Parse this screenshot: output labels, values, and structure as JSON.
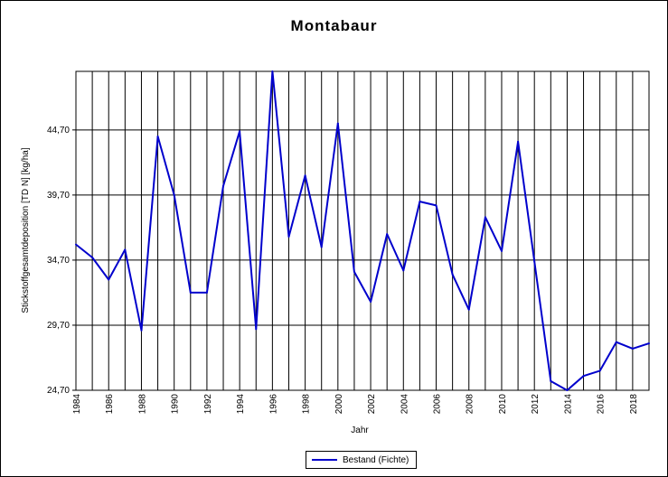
{
  "chart_data": {
    "type": "line",
    "title": "Montabaur",
    "xlabel": "Jahr",
    "ylabel": "Stickstoffgesamtdeposition [TD N] [kg/ha]",
    "x": [
      1984,
      1985,
      1986,
      1987,
      1988,
      1989,
      1990,
      1991,
      1992,
      1993,
      1994,
      1995,
      1996,
      1997,
      1998,
      1999,
      2000,
      2001,
      2002,
      2003,
      2004,
      2005,
      2006,
      2007,
      2008,
      2009,
      2010,
      2011,
      2012,
      2013,
      2014,
      2015,
      2016,
      2017,
      2018,
      2019
    ],
    "xlim": [
      1984,
      2019
    ],
    "x_ticks": [
      "1984",
      "1986",
      "1988",
      "1990",
      "1992",
      "1994",
      "1996",
      "1998",
      "2000",
      "2002",
      "2004",
      "2006",
      "2008",
      "2010",
      "2012",
      "2014",
      "2016",
      "2018"
    ],
    "ylim": [
      24.7,
      49.2
    ],
    "y_ticks": [
      "24,70",
      "29,70",
      "34,70",
      "39,70",
      "44,70"
    ],
    "y_tick_values": [
      24.7,
      29.7,
      34.7,
      39.7,
      44.7
    ],
    "grid": true,
    "legend_position": "bottom-center",
    "series": [
      {
        "name": "Bestand (Fichte)",
        "color": "#0000cc",
        "values": [
          35.9,
          34.9,
          33.2,
          35.5,
          29.3,
          44.2,
          39.7,
          32.2,
          32.2,
          40.4,
          44.6,
          29.4,
          49.2,
          36.5,
          41.2,
          35.7,
          45.2,
          33.8,
          31.5,
          36.7,
          33.9,
          39.2,
          38.9,
          33.6,
          30.9,
          38.0,
          35.4,
          43.8,
          34.6,
          25.4,
          24.7,
          25.8,
          26.2,
          28.4,
          27.9,
          28.3
        ]
      }
    ]
  }
}
